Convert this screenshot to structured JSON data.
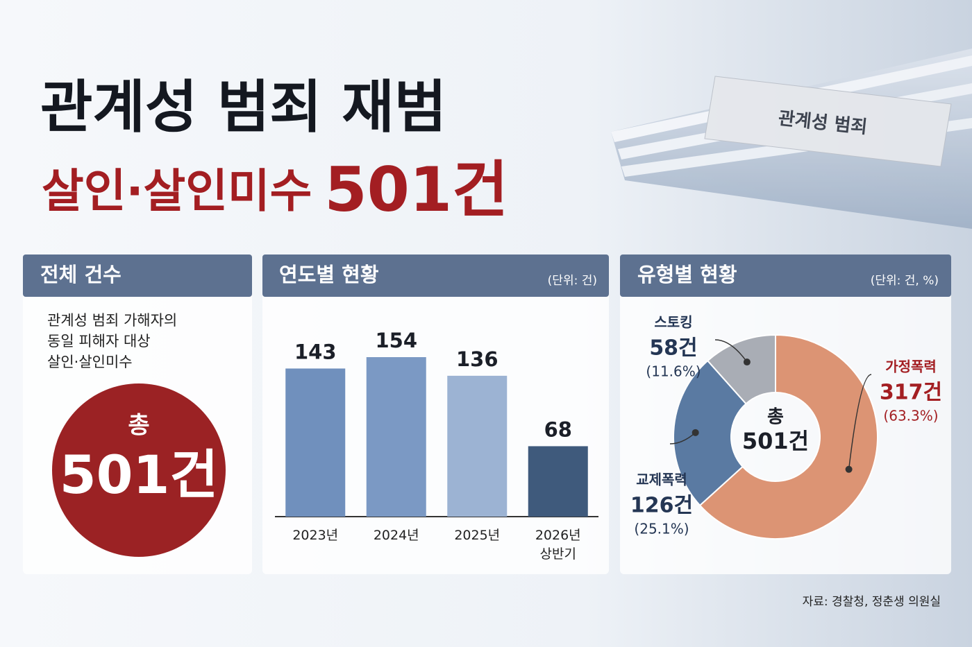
{
  "header": {
    "title": "관계성 범죄 재범",
    "subtitle": "살인·살인미수",
    "highlight": "501건",
    "tab_label": "관계성 범죄"
  },
  "total_panel": {
    "heading": "전체 건수",
    "description": [
      "관계성 범죄 가해자의",
      "동일 피해자 대상",
      "살인·살인미수"
    ],
    "total_prefix": "총",
    "total": "501건"
  },
  "chart_data": [
    {
      "type": "bar",
      "title": "연도별 현황",
      "unit": "(단위: 건)",
      "categories": [
        "2023년",
        "2024년",
        "2025년",
        "2026년 상반기"
      ],
      "values": [
        143,
        154,
        136,
        68
      ],
      "colors": [
        "#7090bd",
        "#7b99c4",
        "#9cb3d3",
        "#3f5a7c"
      ]
    },
    {
      "type": "pie",
      "title": "유형별 현황",
      "unit": "(단위: 건, %)",
      "categories": [
        "가정폭력",
        "교제폭력",
        "스토킹"
      ],
      "values": [
        317,
        126,
        58
      ],
      "value_labels": [
        "317건",
        "126건",
        "58건"
      ],
      "shares": [
        63.3,
        25.1,
        11.6
      ],
      "share_labels": [
        "(63.3%)",
        "(25.1%)",
        "(11.6%)"
      ],
      "colors": [
        "#dc9474",
        "#5a7aa2",
        "#a9adb5"
      ],
      "center_prefix": "총",
      "center_label": "501건"
    }
  ],
  "source": "자료: 경찰청, 정춘생 의원실"
}
